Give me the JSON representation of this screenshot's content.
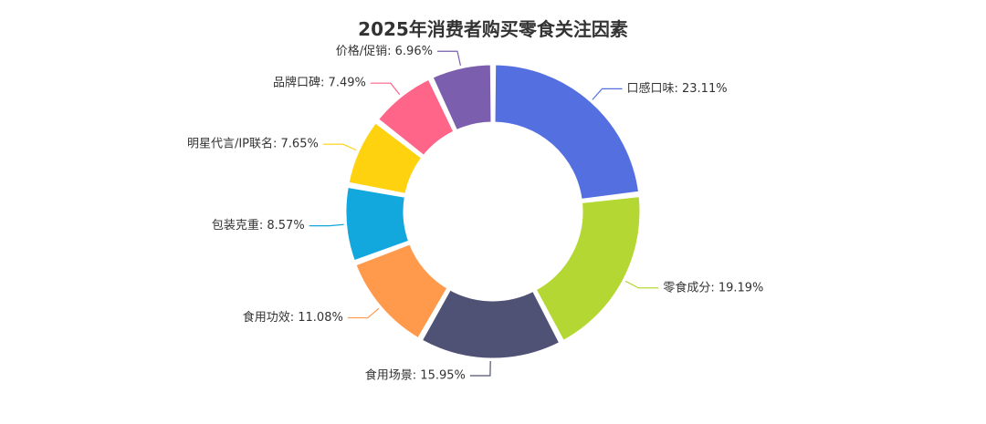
{
  "chart_data": {
    "type": "pie",
    "title": "2025年消费者购买零食关注因素",
    "legend": "none",
    "slices": [
      {
        "name": "口感口味",
        "value": 23.11,
        "label": "口感口味: 23.11%",
        "color": "#5470e0"
      },
      {
        "name": "零食成分",
        "value": 19.19,
        "label": "零食成分: 19.19%",
        "color": "#b5d733"
      },
      {
        "name": "食用场景",
        "value": 15.95,
        "label": "食用场景: 15.95%",
        "color": "#4f5275"
      },
      {
        "name": "食用功效",
        "value": 11.08,
        "label": "食用功效: 11.08%",
        "color": "#ff9a4d"
      },
      {
        "name": "包装克重",
        "value": 8.57,
        "label": "包装克重: 8.57%",
        "color": "#12a8dd"
      },
      {
        "name": "明星代言/IP联名",
        "value": 7.65,
        "label": "明星代言/IP联名: 7.65%",
        "color": "#ffd20f"
      },
      {
        "name": "品牌口碑",
        "value": 7.49,
        "label": "品牌口碑: 7.49%",
        "color": "#ff6489"
      },
      {
        "name": "价格/促销",
        "value": 6.96,
        "label": "价格/促销: 6.96%",
        "color": "#7b5ead"
      }
    ]
  }
}
